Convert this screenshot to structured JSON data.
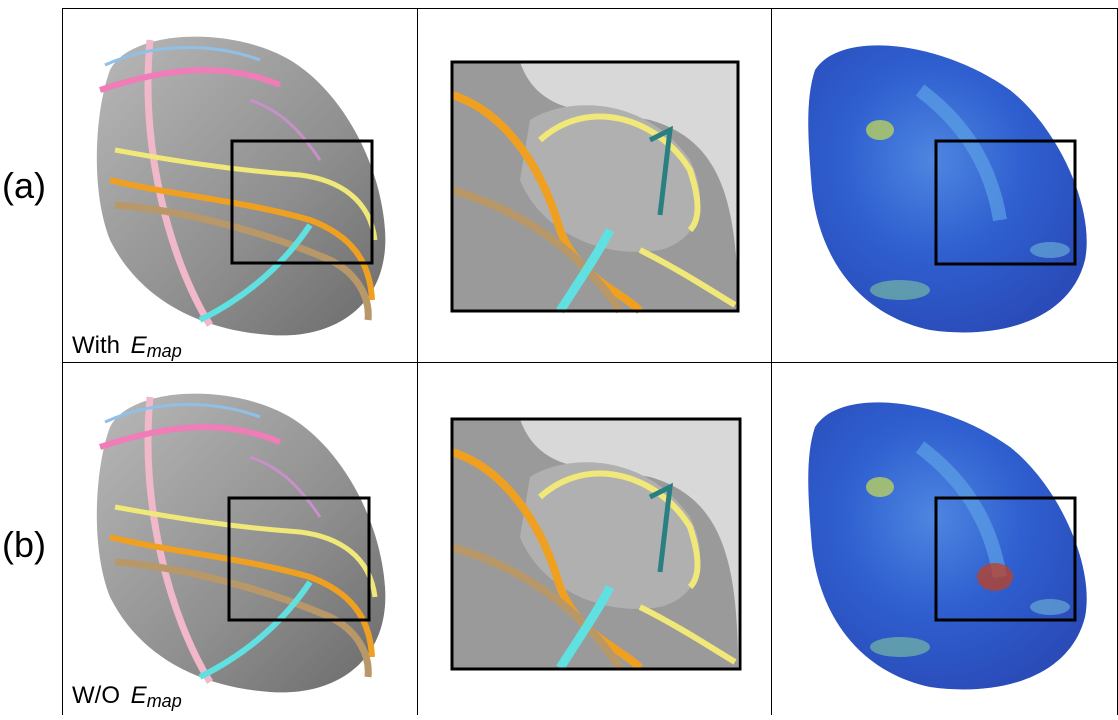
{
  "rows": [
    {
      "label": "(a)",
      "caption": "With",
      "symbol": "E",
      "subscript": "map"
    },
    {
      "label": "(b)",
      "caption": "W/O",
      "symbol": "E",
      "subscript": "map"
    }
  ]
}
